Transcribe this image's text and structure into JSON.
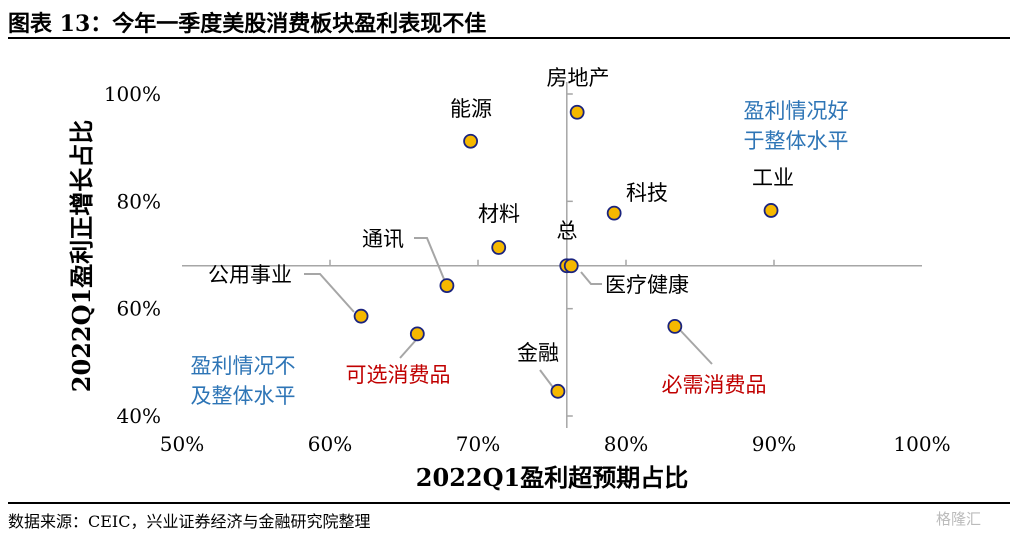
{
  "figure_title": "图表 13：今年一季度美股消费板块盈利表现不佳",
  "source_note": "数据来源：CEIC，兴业证券经济与金融研究院整理",
  "watermark": "格隆汇",
  "colors": {
    "point_fill": "#f5b800",
    "point_stroke": "#1a237e",
    "axis_cross": "#a6a6a6",
    "leader": "#a6a6a6",
    "blue_text": "#2e75b6",
    "red_text": "#c00000"
  },
  "chart_data": {
    "type": "scatter",
    "title": "",
    "xlabel": "2022Q1盈利超预期占比",
    "ylabel": "2022Q1盈利正增长占比",
    "xlim": [
      50,
      100
    ],
    "ylim": [
      40,
      100
    ],
    "x_ticks": [
      "50%",
      "60%",
      "70%",
      "80%",
      "90%",
      "100%"
    ],
    "y_ticks": [
      "40%",
      "60%",
      "80%",
      "100%"
    ],
    "grid": false,
    "reference_lines": {
      "x": 76,
      "y": 68
    },
    "points": [
      {
        "label": "房地产",
        "x": 76.7,
        "y": 96.6
      },
      {
        "label": "能源",
        "x": 69.5,
        "y": 91.2
      },
      {
        "label": "科技",
        "x": 79.2,
        "y": 77.8
      },
      {
        "label": "工业",
        "x": 89.8,
        "y": 78.3
      },
      {
        "label": "材料",
        "x": 71.4,
        "y": 71.4
      },
      {
        "label": "总",
        "x": 76.0,
        "y": 68.0
      },
      {
        "label": "医疗健康",
        "x": 76.3,
        "y": 68.0
      },
      {
        "label": "通讯",
        "x": 67.9,
        "y": 64.3
      },
      {
        "label": "公用事业",
        "x": 62.1,
        "y": 58.6
      },
      {
        "label": "可选消费品",
        "x": 65.9,
        "y": 55.3
      },
      {
        "label": "必需消费品",
        "x": 83.3,
        "y": 56.7
      },
      {
        "label": "金融",
        "x": 75.4,
        "y": 44.6
      }
    ],
    "quadrant_notes": [
      {
        "text": [
          "盈利情况好",
          "于整体水平"
        ],
        "color": "blue"
      },
      {
        "text": [
          "盈利情况不",
          "及整体水平"
        ],
        "color": "blue"
      }
    ]
  }
}
